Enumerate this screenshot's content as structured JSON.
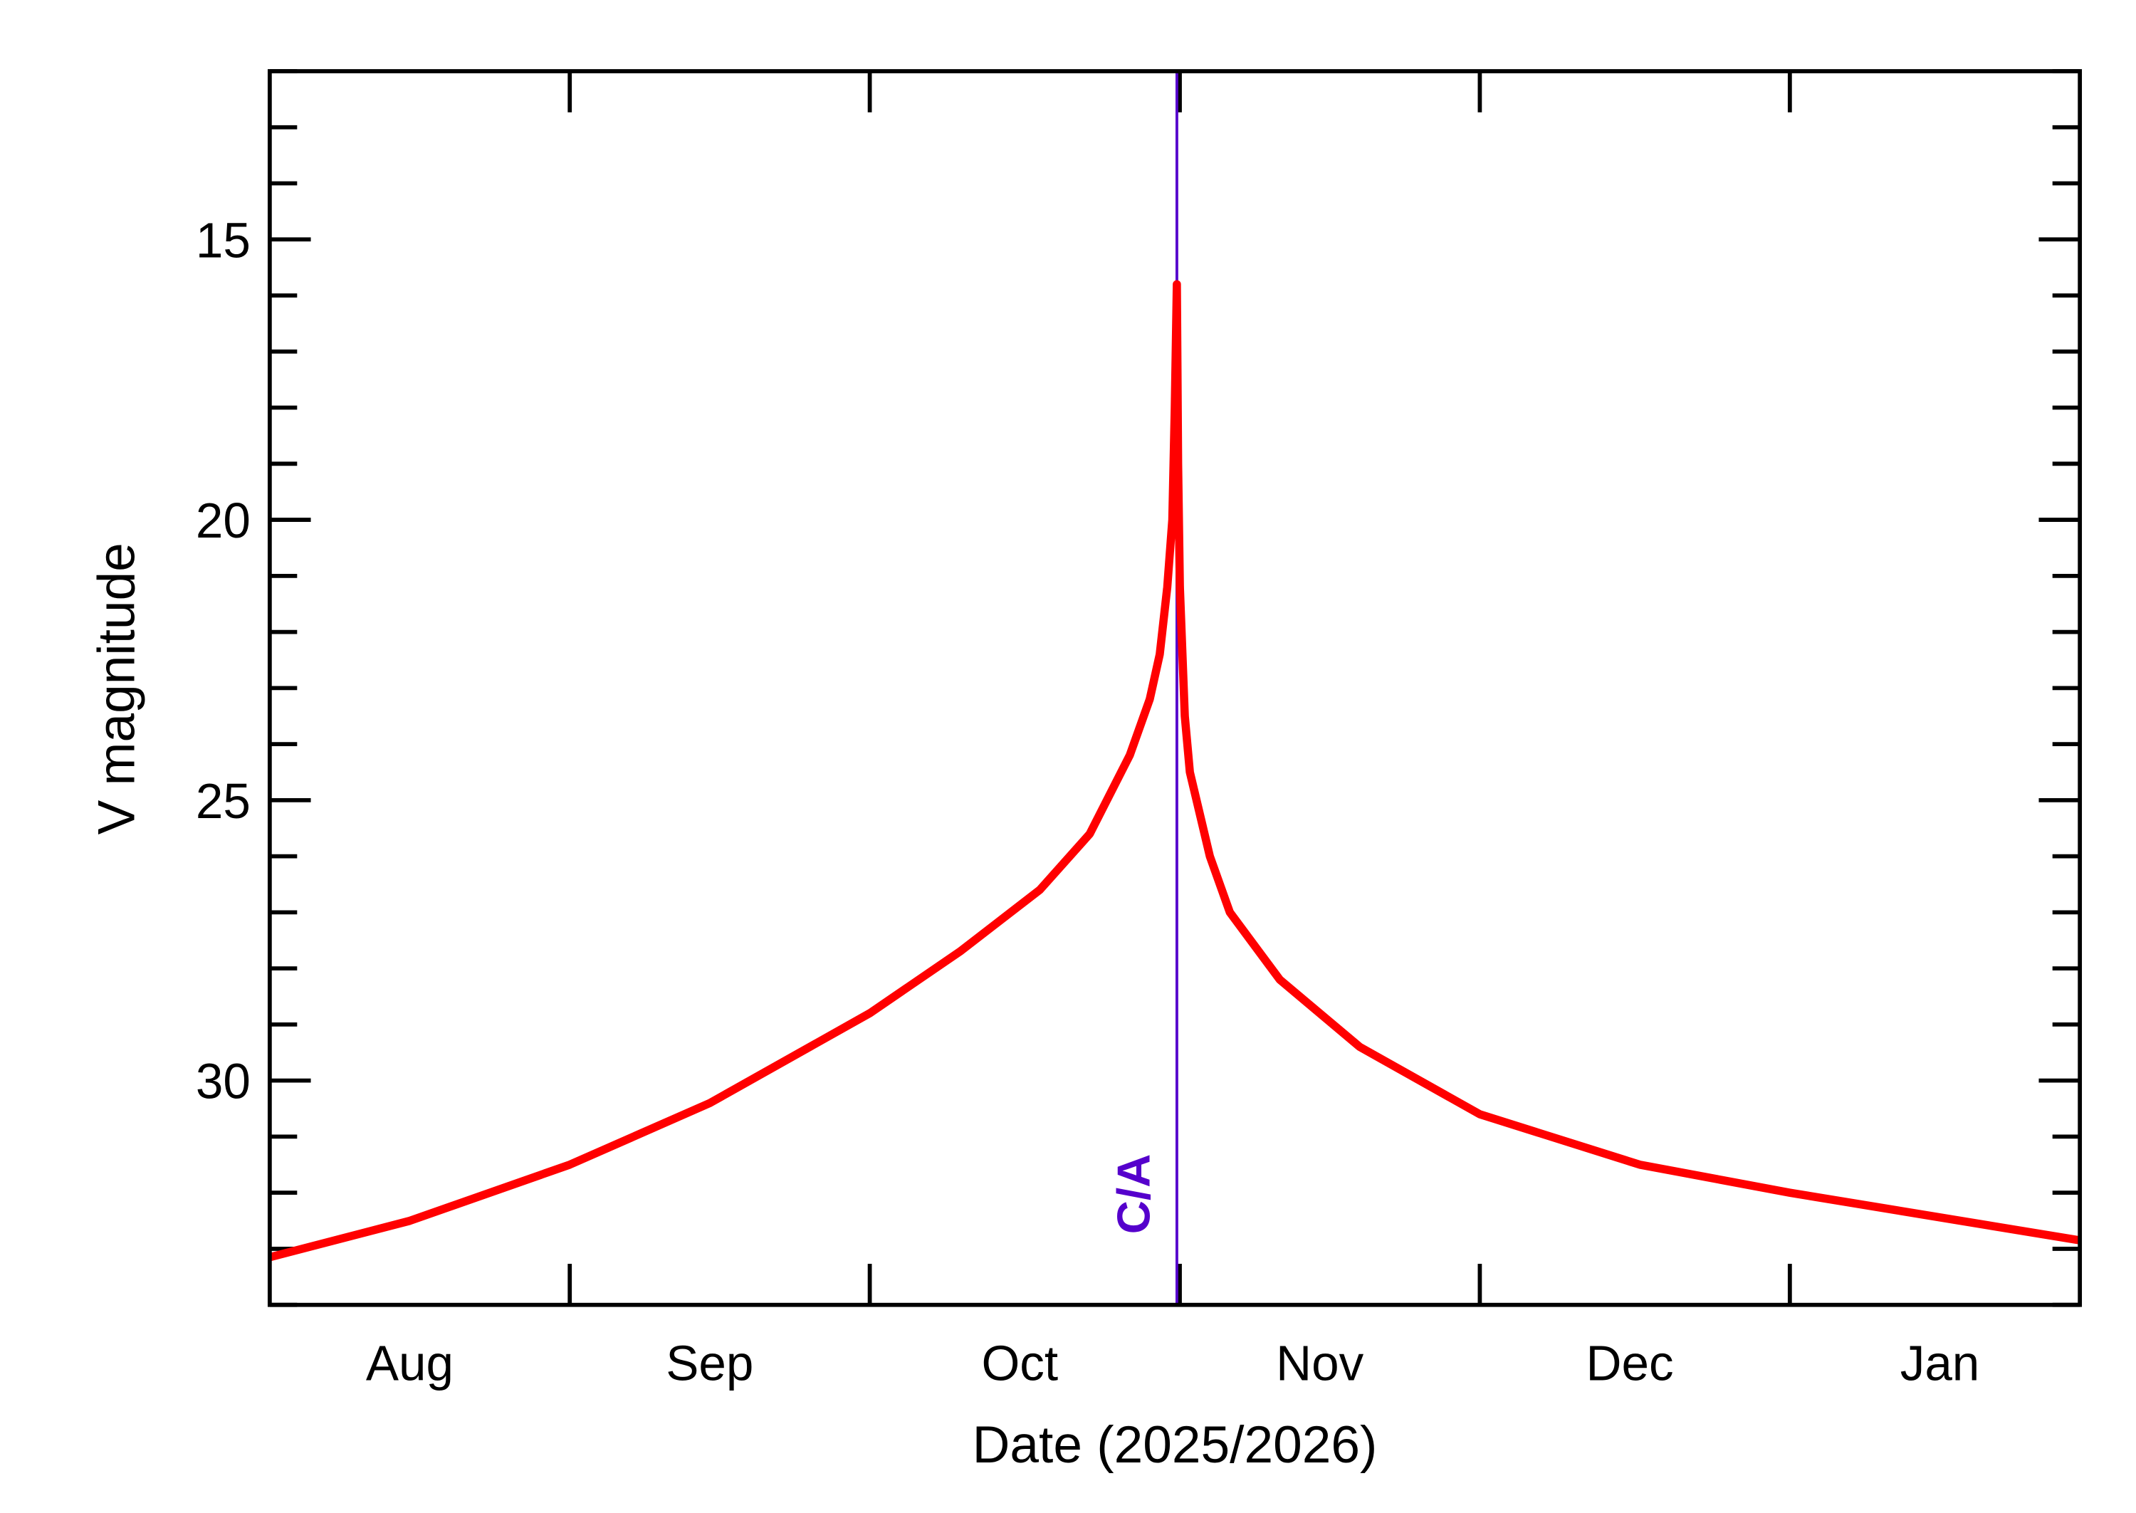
{
  "chart_data": {
    "type": "line",
    "title": "",
    "xlabel": "Date (2025/2026)",
    "ylabel": "V magnitude",
    "xlim": [
      "2025-08-02",
      "2026-01-30"
    ],
    "ylim": [
      34,
      12
    ],
    "y_inverted": true,
    "grid": false,
    "x_tick_labels": [
      "Aug",
      "Sep",
      "Oct",
      "Nov",
      "Dec",
      "Jan"
    ],
    "x_tick_label_dates": [
      "2025-08-16",
      "2025-09-15",
      "2025-10-16",
      "2025-11-15",
      "2025-12-16",
      "2026-01-16"
    ],
    "x_major_ticks": [
      "2025-09-01",
      "2025-10-01",
      "2025-11-01",
      "2025-12-01",
      "2026-01-01"
    ],
    "y_tick_labels": [
      "15",
      "20",
      "25",
      "30"
    ],
    "y_ticks": [
      15,
      20,
      25,
      30
    ],
    "series": [
      {
        "color": "#ff0000",
        "x": [
          "2025-08-02T00:00",
          "2025-08-16T00:00",
          "2025-09-01T00:00",
          "2025-09-15T00:00",
          "2025-10-01T00:00",
          "2025-10-10T00:00",
          "2025-10-18T00:00",
          "2025-10-23T00:00",
          "2025-10-27T00:00",
          "2025-10-29T00:00",
          "2025-10-30T00:00",
          "2025-10-30T18:00",
          "2025-10-31T06:00",
          "2025-10-31T12:00",
          "2025-10-31T17:00",
          "2025-10-31T20:00",
          "2025-11-01T00:00",
          "2025-11-01T12:00",
          "2025-11-02T00:00",
          "2025-11-04T00:00",
          "2025-11-06T00:00",
          "2025-11-11T00:00",
          "2025-11-19T00:00",
          "2025-12-01T00:00",
          "2025-12-17T00:00",
          "2026-01-01T00:00",
          "2026-01-30T00:00"
        ],
        "y": [
          33.15,
          32.5,
          31.5,
          30.4,
          28.8,
          27.7,
          26.6,
          25.6,
          24.2,
          23.2,
          22.4,
          21.2,
          20.0,
          18.0,
          15.8,
          19.0,
          21.2,
          23.5,
          24.5,
          26.0,
          27.0,
          28.2,
          29.4,
          30.6,
          31.5,
          32.0,
          32.85
        ]
      }
    ],
    "annotations": [
      {
        "text": "C/A",
        "x": "2025-10-31T17:00",
        "color": "#5500cc",
        "type": "vertical-line"
      }
    ]
  }
}
